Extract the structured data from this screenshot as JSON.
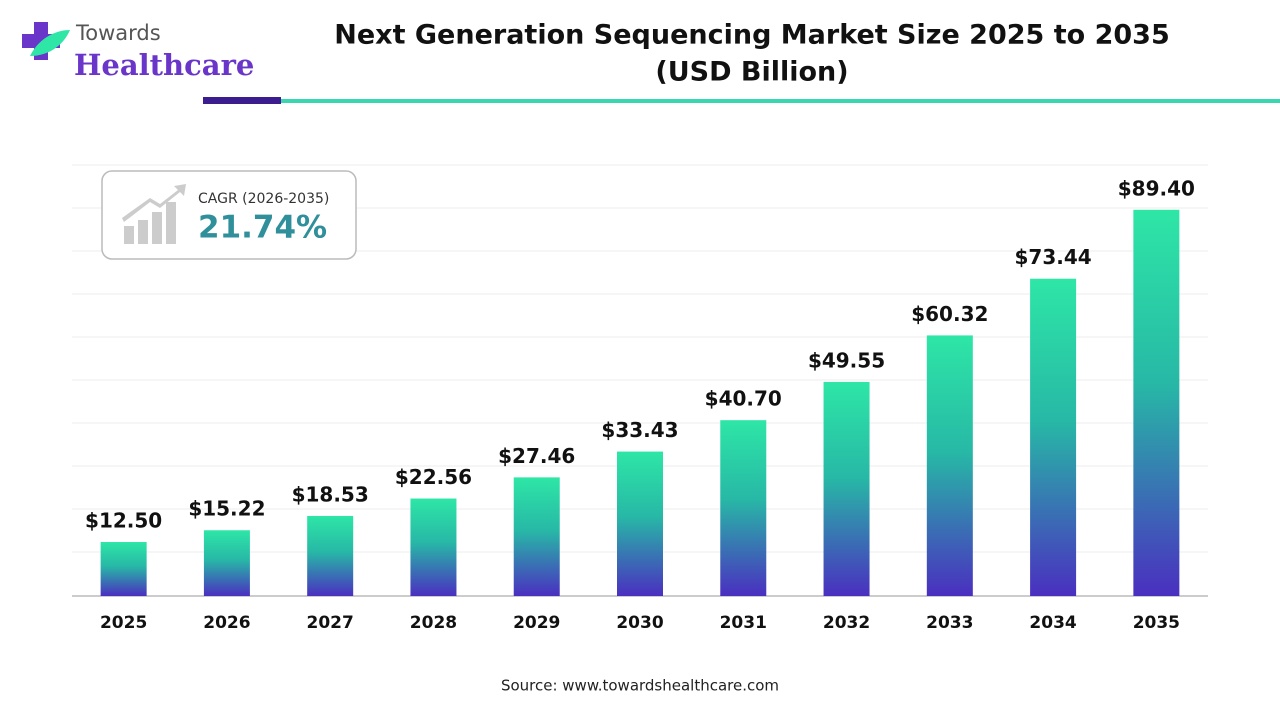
{
  "brand": {
    "line1": "Towards",
    "line2": "Healthcare"
  },
  "chart_data": {
    "type": "bar",
    "title": "Next Generation Sequencing Market Size 2025 to 2035",
    "subtitle": "(USD Billion)",
    "categories": [
      "2025",
      "2026",
      "2027",
      "2028",
      "2029",
      "2030",
      "2031",
      "2032",
      "2033",
      "2034",
      "2035"
    ],
    "values": [
      12.5,
      15.22,
      18.53,
      22.56,
      27.46,
      33.43,
      40.7,
      49.55,
      60.32,
      73.44,
      89.4
    ],
    "value_labels": [
      "$12.50",
      "$15.22",
      "$18.53",
      "$22.56",
      "$27.46",
      "$33.43",
      "$40.70",
      "$49.55",
      "$60.32",
      "$73.44",
      "$89.40"
    ],
    "color_top": "#2ee6a6",
    "color_bottom": "#4a2fc0",
    "annotation": {
      "label": "CAGR (2026-2035)",
      "value": "21.74%"
    },
    "source": "Source: www.towardshealthcare.com"
  }
}
